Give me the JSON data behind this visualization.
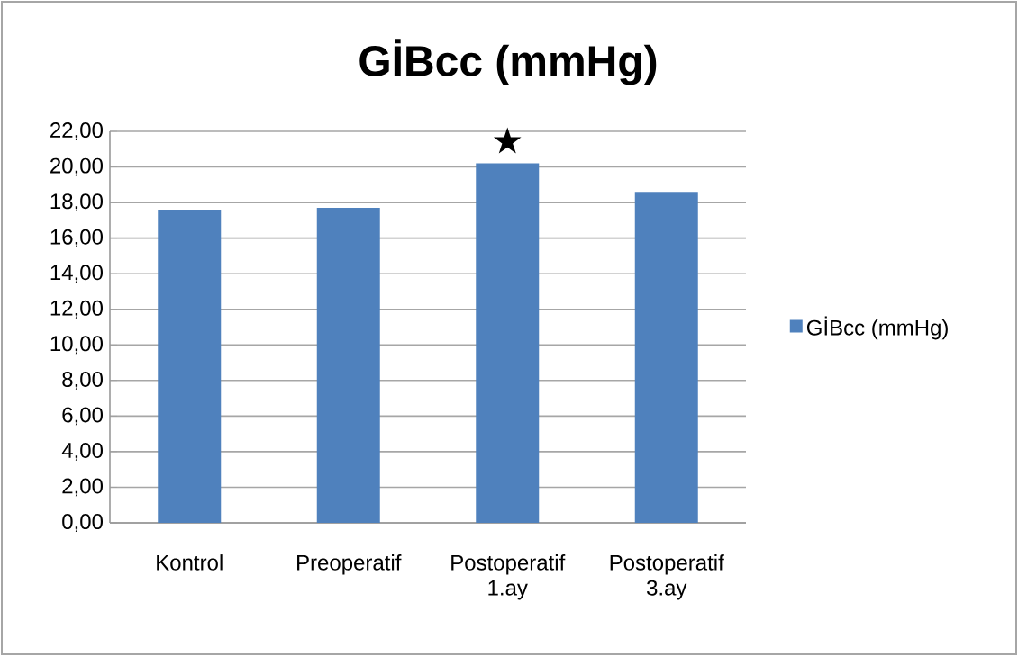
{
  "chart_data": {
    "type": "bar",
    "title": "GİBcc (mmHg)",
    "categories": [
      "Kontrol",
      "Preoperatif",
      "Postoperatif 1.ay",
      "Postoperatif 3.ay"
    ],
    "series": [
      {
        "name": "GİBcc (mmHg)",
        "color": "#4f81bd",
        "values": [
          17.6,
          17.7,
          20.2,
          18.6
        ]
      }
    ],
    "ylim": [
      0,
      22
    ],
    "yticks": [
      {
        "value": 0,
        "label": "0,00"
      },
      {
        "value": 2,
        "label": "2,00"
      },
      {
        "value": 4,
        "label": "4,00"
      },
      {
        "value": 6,
        "label": "6,00"
      },
      {
        "value": 8,
        "label": "8,00"
      },
      {
        "value": 10,
        "label": "10,00"
      },
      {
        "value": 12,
        "label": "12,00"
      },
      {
        "value": 14,
        "label": "14,00"
      },
      {
        "value": 16,
        "label": "16,00"
      },
      {
        "value": 18,
        "label": "18,00"
      },
      {
        "value": 20,
        "label": "20,00"
      },
      {
        "value": 22,
        "label": "22,00"
      }
    ],
    "grid": "y",
    "legend": "right",
    "annotations": [
      {
        "text": "★",
        "x": "Postoperatif 1.ay",
        "y": 20.2
      }
    ]
  }
}
